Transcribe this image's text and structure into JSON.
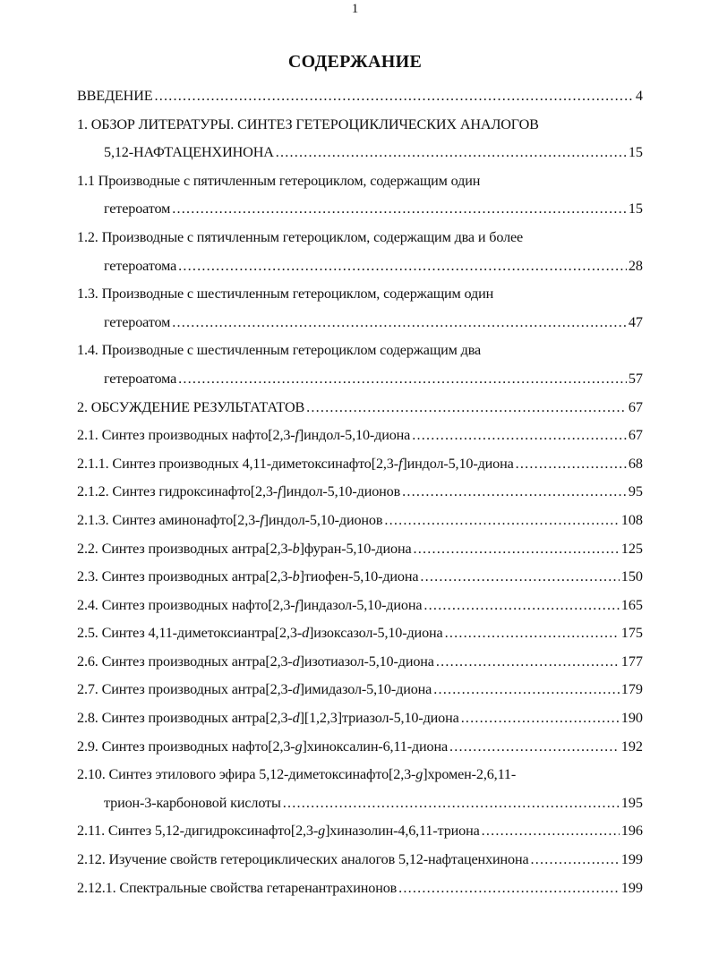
{
  "page_number": "1",
  "title": "СОДЕРЖАНИЕ",
  "toc": [
    {
      "lines": [
        [
          {
            "t": "ВВЕДЕНИЕ"
          }
        ]
      ],
      "page": "4"
    },
    {
      "lines": [
        [
          {
            "t": "1. ОБЗОР ЛИТЕРАТУРЫ. СИНТЕЗ ГЕТЕРОЦИКЛИЧЕСКИХ АНАЛОГОВ"
          }
        ],
        [
          {
            "t": "5,12-НАФТАЦЕНХИНОНА"
          }
        ]
      ],
      "page": "15"
    },
    {
      "lines": [
        [
          {
            "t": "1.1 Производные с пятичленным гетероциклом, содержащим один"
          }
        ],
        [
          {
            "t": "гетероатом"
          }
        ]
      ],
      "page": "15"
    },
    {
      "lines": [
        [
          {
            "t": "1.2. Производные с пятичленным гетероциклом, содержащим два и более"
          }
        ],
        [
          {
            "t": "гетероатома"
          }
        ]
      ],
      "page": "28"
    },
    {
      "lines": [
        [
          {
            "t": "1.3. Производные с шестичленным гетероциклом, содержащим один"
          }
        ],
        [
          {
            "t": "гетероатом "
          }
        ]
      ],
      "page": "47"
    },
    {
      "lines": [
        [
          {
            "t": "1.4. Производные с шестичленным гетероциклом содержащим два"
          }
        ],
        [
          {
            "t": "гетероатома "
          }
        ]
      ],
      "page": "57"
    },
    {
      "lines": [
        [
          {
            "t": "2. ОБСУЖДЕНИЕ РЕЗУЛЬТАТАТОВ"
          }
        ]
      ],
      "page": "67"
    },
    {
      "lines": [
        [
          {
            "t": "2.1. Синтез производных нафто[2,3-"
          },
          {
            "t": "f",
            "i": true
          },
          {
            "t": "]индол-5,10-диона"
          }
        ]
      ],
      "page": "67"
    },
    {
      "lines": [
        [
          {
            "t": "2.1.1. Синтез производных 4,11-диметоксинафто[2,3-"
          },
          {
            "t": "f",
            "i": true
          },
          {
            "t": "]индол-5,10-диона"
          }
        ]
      ],
      "page": "68"
    },
    {
      "lines": [
        [
          {
            "t": "2.1.2. Синтез гидроксинафто[2,3-"
          },
          {
            "t": "f",
            "i": true
          },
          {
            "t": "]индол-5,10-дионов"
          }
        ]
      ],
      "page": "95"
    },
    {
      "lines": [
        [
          {
            "t": "2.1.3. Синтез аминонафто[2,3-"
          },
          {
            "t": "f",
            "i": true
          },
          {
            "t": "]индол-5,10-дионов "
          }
        ]
      ],
      "page": "108"
    },
    {
      "lines": [
        [
          {
            "t": "2.2. Синтез производных антра[2,3-"
          },
          {
            "t": "b",
            "i": true
          },
          {
            "t": "]фуран-5,10-диона"
          }
        ]
      ],
      "page": "125"
    },
    {
      "lines": [
        [
          {
            "t": "2.3. Синтез производных антра[2,3-"
          },
          {
            "t": "b",
            "i": true
          },
          {
            "t": "]тиофен-5,10-диона"
          }
        ]
      ],
      "page": "150"
    },
    {
      "lines": [
        [
          {
            "t": "2.4. Синтез производных нафто[2,3-"
          },
          {
            "t": "f",
            "i": true
          },
          {
            "t": "]индазол-5,10-диона"
          }
        ]
      ],
      "page": "165"
    },
    {
      "lines": [
        [
          {
            "t": "2.5. Синтез 4,11-диметоксиантра[2,3-"
          },
          {
            "t": "d",
            "i": true
          },
          {
            "t": "]изоксазол-5,10-диона"
          }
        ]
      ],
      "page": "175"
    },
    {
      "lines": [
        [
          {
            "t": "2.6. Синтез производных антра[2,3-"
          },
          {
            "t": "d",
            "i": true
          },
          {
            "t": "]изотиазол-5,10-диона"
          }
        ]
      ],
      "page": "177"
    },
    {
      "lines": [
        [
          {
            "t": "2.7. Синтез производных антра[2,3-"
          },
          {
            "t": "d",
            "i": true
          },
          {
            "t": "]имидазол-5,10-диона"
          }
        ]
      ],
      "page": "179"
    },
    {
      "lines": [
        [
          {
            "t": "2.8. Синтез производных антра[2,3-"
          },
          {
            "t": "d",
            "i": true
          },
          {
            "t": "][1,2,3]триазол-5,10-диона"
          }
        ]
      ],
      "page": "190"
    },
    {
      "lines": [
        [
          {
            "t": "2.9. Синтез производных нафто[2,3-"
          },
          {
            "t": "g",
            "i": true
          },
          {
            "t": "]хиноксалин-6,11-диона"
          }
        ]
      ],
      "page": "192"
    },
    {
      "lines": [
        [
          {
            "t": "2.10. Синтез этилового эфира 5,12-диметоксинафто[2,3-"
          },
          {
            "t": "g",
            "i": true
          },
          {
            "t": "]хромен-2,6,11-"
          }
        ],
        [
          {
            "t": "трион-3-карбоновой кислоты "
          }
        ]
      ],
      "page": "195"
    },
    {
      "lines": [
        [
          {
            "t": "2.11. Синтез 5,12-дигидроксинафто[2,3-"
          },
          {
            "t": "g",
            "i": true
          },
          {
            "t": "]хиназолин-4,6,11-триона"
          }
        ]
      ],
      "page": "196"
    },
    {
      "lines": [
        [
          {
            "t": "2.12. Изучение свойств гетероциклических аналогов 5,12-нафтаценхинона"
          }
        ]
      ],
      "page": "199"
    },
    {
      "lines": [
        [
          {
            "t": "2.12.1. Спектральные свойства гетаренантрахинонов"
          }
        ]
      ],
      "page": "199"
    }
  ]
}
